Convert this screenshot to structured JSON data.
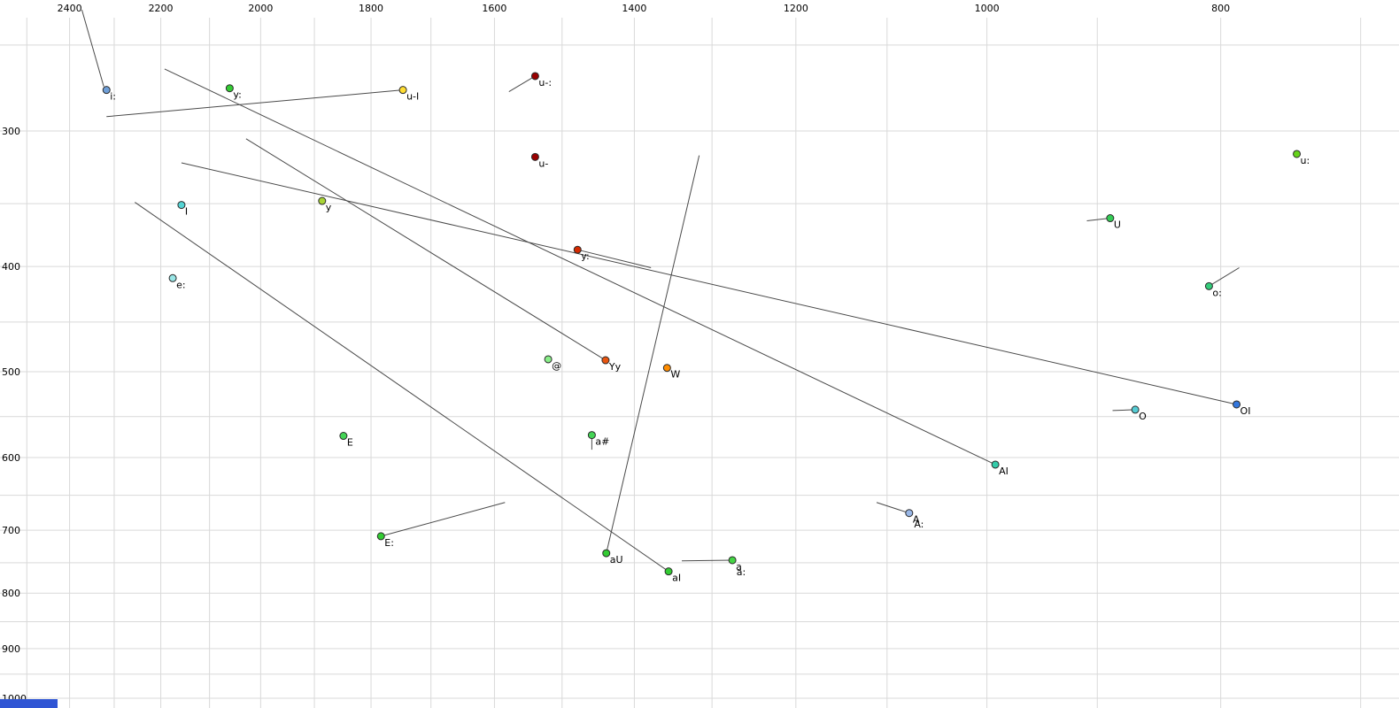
{
  "chart_data": {
    "type": "scatter",
    "title": "",
    "x_axis": {
      "unit": "Hz",
      "scale": "log",
      "reversed": true,
      "tick_labels": [
        2400,
        2200,
        2000,
        1800,
        1600,
        1400,
        1200,
        1000,
        800
      ],
      "gridlines": [
        2500,
        2400,
        2300,
        2200,
        2100,
        2000,
        1900,
        1800,
        1700,
        1600,
        1500,
        1400,
        1300,
        1200,
        1100,
        1000,
        900,
        800,
        700
      ]
    },
    "y_axis": {
      "unit": "Hz",
      "scale": "log",
      "reversed": true,
      "tick_labels": [
        300,
        400,
        500,
        600,
        700,
        800,
        900,
        1000
      ],
      "gridlines": [
        250,
        300,
        350,
        400,
        450,
        500,
        550,
        600,
        650,
        700,
        750,
        800,
        850,
        900,
        950,
        1000
      ]
    },
    "points": [
      {
        "label": "i:",
        "f2": 2317,
        "f1": 275,
        "color": "#6f9fd8"
      },
      {
        "label": "y:",
        "f2": 2060,
        "f1": 274,
        "color": "#33cc33"
      },
      {
        "label": "u-I",
        "f2": 1746,
        "f1": 275,
        "color": "#ffdd33"
      },
      {
        "label": "u-:",
        "f2": 1539,
        "f1": 267,
        "color": "#990000"
      },
      {
        "label": "u-",
        "f2": 1539,
        "f1": 317,
        "color": "#990000"
      },
      {
        "label": "u:",
        "f2": 744,
        "f1": 315,
        "color": "#66d41a"
      },
      {
        "label": "y",
        "f2": 1886,
        "f1": 348,
        "color": "#a8d435"
      },
      {
        "label": "I",
        "f2": 2157,
        "f1": 351,
        "color": "#55d4d4"
      },
      {
        "label": "U",
        "f2": 889,
        "f1": 361,
        "color": "#33cc55"
      },
      {
        "label": "y:",
        "f2": 1478,
        "f1": 386,
        "color": "#d42a00"
      },
      {
        "label": "e:",
        "f2": 2175,
        "f1": 410,
        "color": "#99e6e6"
      },
      {
        "label": "o:",
        "f2": 809,
        "f1": 417,
        "color": "#33cc7a"
      },
      {
        "label": "@",
        "f2": 1520,
        "f1": 487,
        "color": "#88ee88"
      },
      {
        "label": "Yy",
        "f2": 1439,
        "f1": 488,
        "color": "#e85510"
      },
      {
        "label": "W",
        "f2": 1357,
        "f1": 496,
        "color": "#ff8c00"
      },
      {
        "label": "O",
        "f2": 868,
        "f1": 542,
        "color": "#55ccd4"
      },
      {
        "label": "OI",
        "f2": 788,
        "f1": 536,
        "color": "#3377dd"
      },
      {
        "label": "E",
        "f2": 1848,
        "f1": 573,
        "color": "#44d455"
      },
      {
        "label": "a#",
        "f2": 1458,
        "f1": 572,
        "color": "#44d455"
      },
      {
        "label": "AI",
        "f2": 992,
        "f1": 609,
        "color": "#33ccaa"
      },
      {
        "label": "A",
        "f2": 1077,
        "f1": 675,
        "color": "#9ab8e8"
      },
      {
        "label": "E:",
        "f2": 1783,
        "f1": 709,
        "color": "#33cc33"
      },
      {
        "label": "aU",
        "f2": 1438,
        "f1": 735,
        "color": "#33cc33"
      },
      {
        "label": "aI",
        "f2": 1355,
        "f1": 764,
        "color": "#33cc33"
      },
      {
        "label": "a",
        "f2": 1275,
        "f1": 746,
        "color": "#44d444"
      }
    ],
    "extra_labels": [
      {
        "text": "A:",
        "f2": 1072,
        "f1": 696
      },
      {
        "text": "a:",
        "f2": 1270,
        "f1": 770
      }
    ],
    "trajectories": [
      {
        "from": [
          2372,
          232
        ],
        "to": [
          2323,
          273
        ]
      },
      {
        "from": [
          2317,
          291
        ],
        "to": [
          1746,
          275
        ]
      },
      {
        "from": [
          2192,
          263
        ],
        "to": [
          992,
          609
        ]
      },
      {
        "from": [
          2157,
          321
        ],
        "to": [
          788,
          536
        ]
      },
      {
        "from": [
          2028,
          305
        ],
        "to": [
          1439,
          488
        ]
      },
      {
        "from": [
          2255,
          349
        ],
        "to": [
          1355,
          764
        ]
      },
      {
        "from": [
          1316,
          316
        ],
        "to": [
          1438,
          735
        ]
      },
      {
        "from": [
          1578,
          276
        ],
        "to": [
          1539,
          267
        ]
      },
      {
        "from": [
          1478,
          386
        ],
        "to": [
          1378,
          401
        ]
      },
      {
        "from": [
          909,
          363
        ],
        "to": [
          889,
          361
        ]
      },
      {
        "from": [
          887,
          543
        ],
        "to": [
          868,
          542
        ]
      },
      {
        "from": [
          809,
          417
        ],
        "to": [
          786,
          401
        ]
      },
      {
        "from": [
          1111,
          660
        ],
        "to": [
          1077,
          675
        ]
      },
      {
        "from": [
          1783,
          709
        ],
        "to": [
          1584,
          660
        ]
      },
      {
        "from": [
          1338,
          747
        ],
        "to": [
          1275,
          746
        ]
      },
      {
        "from": [
          1458,
          572
        ],
        "to": [
          1458,
          590
        ]
      }
    ]
  },
  "colors": {
    "background": "#ffffff",
    "grid": "#d9d9d9",
    "tick_text": "#000000",
    "trajectory": "#4a4a4a",
    "dot_stroke": "#2a2a2a",
    "label_text": "#000000",
    "corner_rect": "#2f55d4"
  }
}
